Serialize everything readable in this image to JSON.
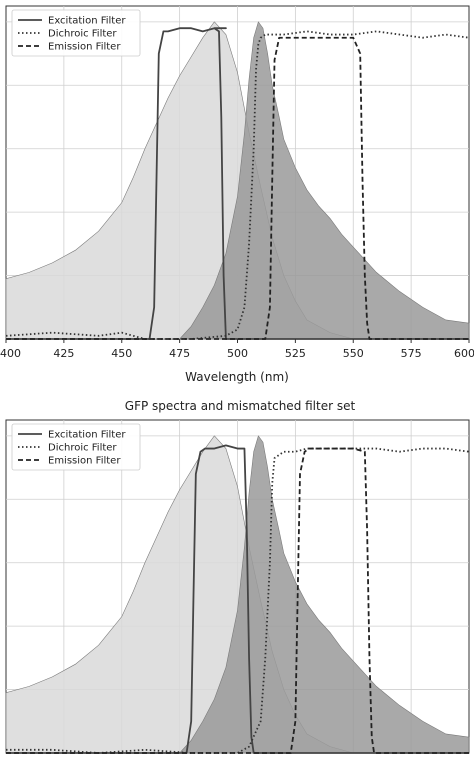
{
  "chart_data": [
    {
      "type": "area",
      "title": "",
      "xlabel": "Wavelength (nm)",
      "ylabel": "",
      "xlim": [
        400,
        600
      ],
      "ylim": [
        0,
        1.05
      ],
      "xticks": [
        "400",
        "425",
        "450",
        "475",
        "500",
        "525",
        "550",
        "575",
        "600"
      ],
      "grid": true,
      "legend": {
        "placement": "top-left",
        "entries": [
          "Excitation Filter",
          "Dichroic Filter",
          "Emission Filter"
        ]
      },
      "series": [
        {
          "name": "",
          "kind": "fill",
          "color": "#d9d9d9",
          "x": [
            400,
            410,
            420,
            430,
            440,
            450,
            455,
            460,
            465,
            470,
            475,
            480,
            485,
            488,
            490,
            495,
            500,
            505,
            510,
            515,
            520,
            525,
            530,
            540,
            550
          ],
          "y": [
            0.19,
            0.21,
            0.24,
            0.28,
            0.34,
            0.43,
            0.51,
            0.6,
            0.68,
            0.76,
            0.83,
            0.89,
            0.95,
            0.98,
            1.0,
            0.96,
            0.84,
            0.65,
            0.48,
            0.32,
            0.2,
            0.12,
            0.06,
            0.02,
            0.0
          ]
        },
        {
          "name": "",
          "kind": "fill",
          "color": "#9a9a9a",
          "x": [
            475,
            480,
            485,
            490,
            495,
            500,
            503,
            505,
            507,
            509,
            511,
            513,
            515,
            518,
            520,
            525,
            530,
            535,
            540,
            545,
            550,
            560,
            570,
            580,
            590,
            600
          ],
          "y": [
            0.0,
            0.04,
            0.1,
            0.17,
            0.27,
            0.45,
            0.65,
            0.82,
            0.95,
            1.0,
            0.98,
            0.9,
            0.8,
            0.7,
            0.63,
            0.54,
            0.47,
            0.42,
            0.38,
            0.33,
            0.29,
            0.21,
            0.15,
            0.1,
            0.06,
            0.05
          ]
        },
        {
          "name": "Excitation Filter",
          "kind": "line",
          "style": "solid",
          "color": "#444444",
          "x": [
            400,
            462,
            464,
            465,
            466,
            468,
            470,
            475,
            480,
            485,
            490,
            495,
            490,
            492,
            493,
            494,
            495,
            600
          ],
          "y": [
            0.0,
            0.0,
            0.1,
            0.5,
            0.9,
            0.97,
            0.97,
            0.98,
            0.98,
            0.97,
            0.98,
            0.98,
            0.98,
            0.97,
            0.7,
            0.2,
            0.0,
            0.0
          ]
        },
        {
          "name": "Dichroic Filter",
          "kind": "line",
          "style": "dotted",
          "color": "#333333",
          "x": [
            400,
            420,
            440,
            450,
            455,
            460,
            480,
            495,
            500,
            503,
            505,
            507,
            508,
            509,
            510,
            512,
            515,
            520,
            530,
            540,
            550,
            560,
            570,
            580,
            590,
            600
          ],
          "y": [
            0.01,
            0.02,
            0.01,
            0.02,
            0.01,
            0.0,
            0.0,
            0.01,
            0.03,
            0.1,
            0.3,
            0.6,
            0.85,
            0.93,
            0.95,
            0.96,
            0.96,
            0.96,
            0.97,
            0.96,
            0.96,
            0.97,
            0.96,
            0.95,
            0.96,
            0.95
          ]
        },
        {
          "name": "Emission Filter",
          "kind": "line",
          "style": "dashed",
          "color": "#222222",
          "x": [
            400,
            512,
            514,
            515,
            516,
            518,
            520,
            530,
            540,
            550,
            553,
            554,
            555,
            556,
            557,
            600
          ],
          "y": [
            0.0,
            0.0,
            0.1,
            0.5,
            0.88,
            0.95,
            0.95,
            0.95,
            0.95,
            0.95,
            0.9,
            0.5,
            0.2,
            0.05,
            0.0,
            0.0
          ]
        }
      ]
    },
    {
      "type": "area",
      "title": "GFP spectra and mismatched filter set",
      "xlabel": "",
      "ylabel": "",
      "xlim": [
        400,
        600
      ],
      "ylim": [
        0,
        1.05
      ],
      "grid": true,
      "legend": {
        "placement": "top-left",
        "entries": [
          "Excitation Filter",
          "Dichroic Filter",
          "Emission Filter"
        ]
      },
      "series": [
        {
          "name": "",
          "kind": "fill",
          "color": "#d9d9d9",
          "x": [
            400,
            410,
            420,
            430,
            440,
            450,
            455,
            460,
            465,
            470,
            475,
            480,
            485,
            488,
            490,
            495,
            500,
            505,
            510,
            515,
            520,
            525,
            530,
            540,
            550
          ],
          "y": [
            0.19,
            0.21,
            0.24,
            0.28,
            0.34,
            0.43,
            0.51,
            0.6,
            0.68,
            0.76,
            0.83,
            0.89,
            0.95,
            0.98,
            1.0,
            0.96,
            0.84,
            0.65,
            0.48,
            0.32,
            0.2,
            0.12,
            0.06,
            0.02,
            0.0
          ]
        },
        {
          "name": "",
          "kind": "fill",
          "color": "#9a9a9a",
          "x": [
            475,
            480,
            485,
            490,
            495,
            500,
            503,
            505,
            507,
            509,
            511,
            513,
            515,
            518,
            520,
            525,
            530,
            535,
            540,
            545,
            550,
            560,
            570,
            580,
            590,
            600
          ],
          "y": [
            0.0,
            0.04,
            0.1,
            0.17,
            0.27,
            0.45,
            0.65,
            0.82,
            0.95,
            1.0,
            0.98,
            0.9,
            0.8,
            0.7,
            0.63,
            0.54,
            0.47,
            0.42,
            0.38,
            0.33,
            0.29,
            0.21,
            0.15,
            0.1,
            0.06,
            0.05
          ]
        },
        {
          "name": "Excitation Filter",
          "kind": "line",
          "style": "solid",
          "color": "#444444",
          "x": [
            400,
            478,
            480,
            481,
            482,
            484,
            486,
            490,
            495,
            500,
            503,
            504,
            505,
            506,
            507,
            600
          ],
          "y": [
            0.0,
            0.0,
            0.1,
            0.5,
            0.88,
            0.95,
            0.96,
            0.96,
            0.97,
            0.96,
            0.96,
            0.7,
            0.3,
            0.05,
            0.0,
            0.0
          ]
        },
        {
          "name": "Dichroic Filter",
          "kind": "line",
          "style": "dotted",
          "color": "#333333",
          "x": [
            400,
            420,
            440,
            460,
            480,
            500,
            505,
            510,
            512,
            514,
            515,
            516,
            518,
            520,
            525,
            530,
            540,
            550,
            560,
            570,
            580,
            590,
            600
          ],
          "y": [
            0.01,
            0.01,
            0.0,
            0.01,
            0.0,
            0.0,
            0.02,
            0.1,
            0.3,
            0.6,
            0.85,
            0.93,
            0.94,
            0.95,
            0.95,
            0.96,
            0.96,
            0.96,
            0.96,
            0.95,
            0.96,
            0.96,
            0.95
          ]
        },
        {
          "name": "Emission Filter",
          "kind": "line",
          "style": "dashed",
          "color": "#222222",
          "x": [
            400,
            523,
            525,
            526,
            527,
            529,
            531,
            540,
            550,
            555,
            556,
            557,
            558,
            559,
            600
          ],
          "y": [
            0.0,
            0.0,
            0.1,
            0.5,
            0.88,
            0.95,
            0.96,
            0.96,
            0.96,
            0.95,
            0.7,
            0.3,
            0.05,
            0.0,
            0.0
          ]
        }
      ]
    }
  ]
}
